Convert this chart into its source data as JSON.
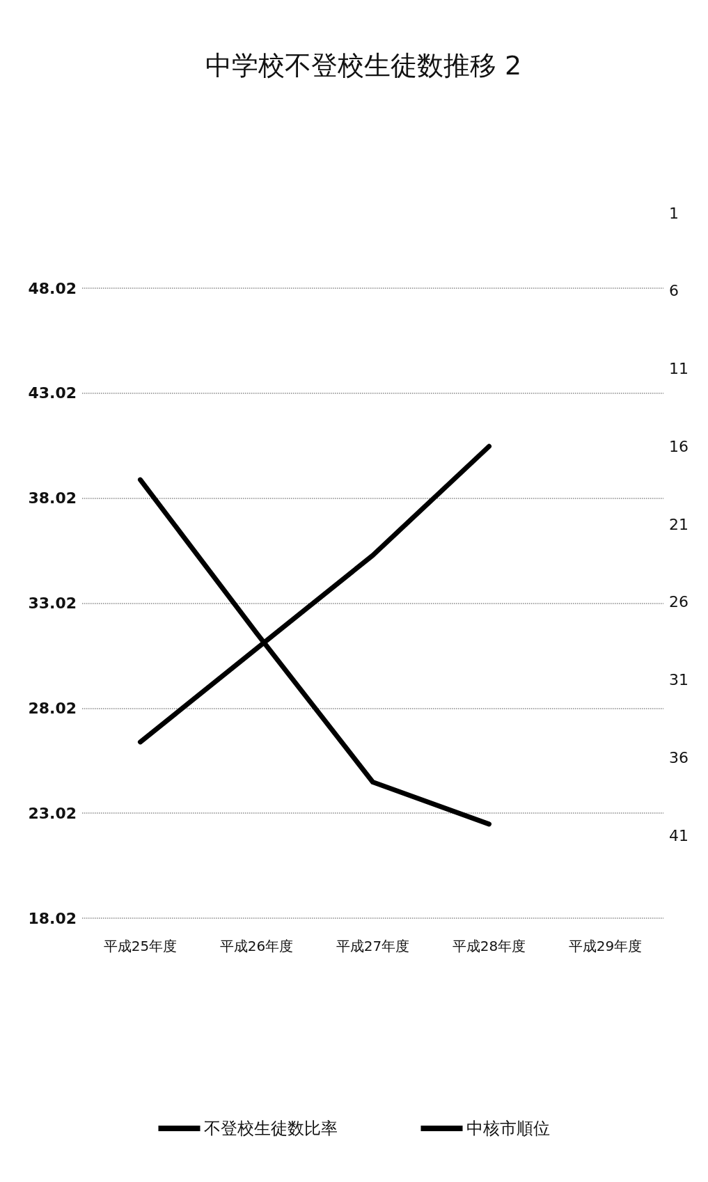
{
  "chart_data": {
    "type": "line",
    "title": "中学校不登校生徒数推移 2",
    "categories": [
      "平成25年度",
      "平成26年度",
      "平成27年度",
      "平成28年度",
      "平成29年度"
    ],
    "series": [
      {
        "name": "不登校生徒数比率",
        "color": "#000000",
        "values": [
          38.9,
          31.6,
          24.5,
          22.5,
          null
        ]
      },
      {
        "name": "中核市順位",
        "color": "#000000",
        "axis": "y2",
        "values": [
          35,
          29,
          23,
          16,
          null
        ]
      }
    ],
    "ylim": [
      18.02,
      48.02
    ],
    "yticks": [
      18.02,
      23.02,
      28.02,
      33.02,
      38.02,
      43.02,
      48.02
    ],
    "y2lim": [
      41,
      1
    ],
    "y2ticks": [
      41,
      36,
      31,
      26,
      21,
      16,
      11,
      6,
      1
    ],
    "grid": "y",
    "legend": "bottom",
    "marker": "none",
    "line_style": "solid"
  }
}
